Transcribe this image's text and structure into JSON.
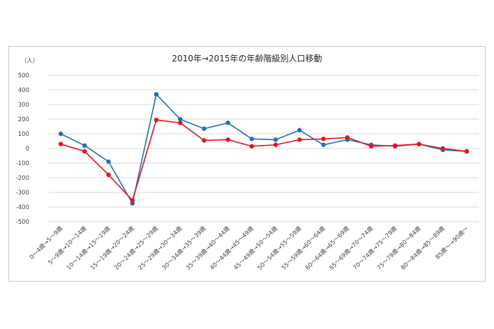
{
  "chart_data": {
    "type": "line",
    "title": "2010年→2015年の年齢階級別人口移動",
    "ylabel": "（人）",
    "xlabel": "",
    "ylim": [
      -500,
      500
    ],
    "yticks": [
      500,
      400,
      300,
      200,
      100,
      0,
      -100,
      -200,
      -300,
      -400,
      -500
    ],
    "grid": true,
    "categories": [
      "0～4歳→5～9歳",
      "5～9歳→10～14歳",
      "10～14歳→15～19歳",
      "15～19歳→20～24歳",
      "20～24歳→25～29歳",
      "25～29歳→30～34歳",
      "30～34歳→35～39歳",
      "35～39歳→40～44歳",
      "40～44歳→45～49歳",
      "45～49歳→50～54歳",
      "50～54歳→55～59歳",
      "55～59歳→60～64歳",
      "60～64歳→65～69歳",
      "65～69歳→70～74歳",
      "70～74歳→75～79歳",
      "75～79歳→80～84歳",
      "80～84歳→85～89歳",
      "85歳～→90歳～"
    ],
    "series": [
      {
        "color": "#1f6fc0",
        "values": [
          100,
          20,
          -90,
          -375,
          370,
          200,
          135,
          175,
          65,
          60,
          125,
          25,
          60,
          25,
          15,
          30,
          -10,
          -20
        ]
      },
      {
        "color": "#e8141c",
        "values": [
          30,
          -20,
          -180,
          -355,
          195,
          175,
          55,
          60,
          15,
          25,
          60,
          65,
          75,
          15,
          20,
          30,
          0,
          -20
        ]
      }
    ]
  }
}
